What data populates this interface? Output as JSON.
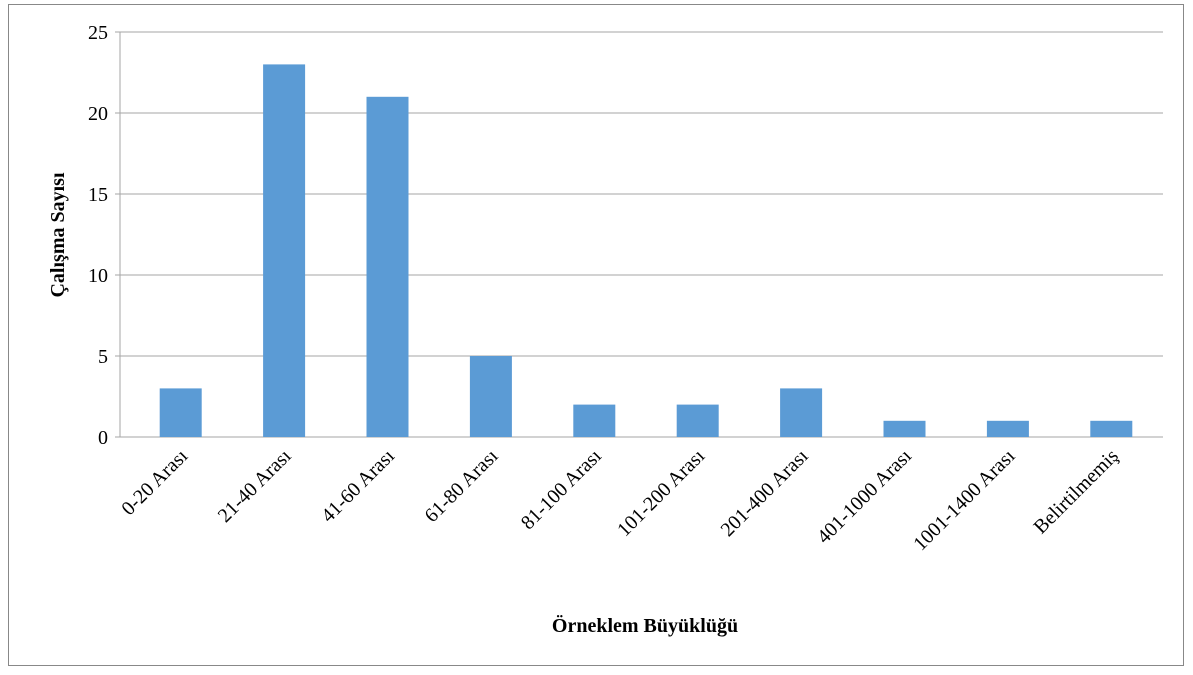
{
  "chart_data": {
    "type": "bar",
    "x_label": "Örneklem Büyüklüğü",
    "y_label": "Çalışma Sayısı",
    "categories": [
      "0-20 Arası",
      "21-40 Arası",
      "41-60 Arası",
      "61-80 Arası",
      "81-100 Arası",
      "101-200 Arası",
      "201-400 Arası",
      "401-1000 Arası",
      "1001-1400 Arası",
      "Belirtilmemiş"
    ],
    "values": [
      3,
      23,
      21,
      5,
      2,
      2,
      3,
      1,
      1,
      1
    ],
    "color": "#5b9bd5",
    "ylim": [
      0,
      25
    ],
    "yticks": [
      0,
      5,
      10,
      15,
      20,
      25
    ],
    "grid": true
  }
}
